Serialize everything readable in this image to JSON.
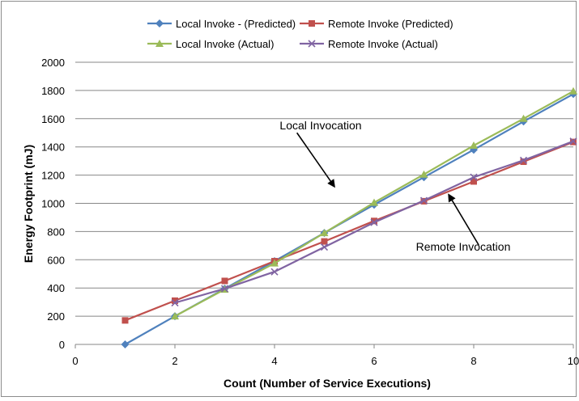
{
  "chart_data": {
    "type": "line",
    "title": "",
    "xlabel": "Count (Number of Service Executions)",
    "ylabel": "Energy Footprint  (mJ)",
    "xlim": [
      0,
      10
    ],
    "ylim": [
      0,
      2000
    ],
    "xticks": [
      0,
      2,
      4,
      6,
      8,
      10
    ],
    "yticks": [
      0,
      200,
      400,
      600,
      800,
      1000,
      1200,
      1400,
      1600,
      1800,
      2000
    ],
    "grid": "horizontal",
    "legend_position": "top",
    "series": [
      {
        "name": "Local Invoke - (Predicted)",
        "color": "#4f81bd",
        "marker": "diamond",
        "x": [
          1,
          2,
          3,
          4,
          5,
          6,
          7,
          8,
          9,
          10
        ],
        "y": [
          0,
          200,
          395,
          590,
          790,
          990,
          1185,
          1380,
          1580,
          1775
        ]
      },
      {
        "name": "Remote Invoke (Predicted)",
        "color": "#c0504d",
        "marker": "square",
        "x": [
          1,
          2,
          3,
          4,
          5,
          6,
          7,
          8,
          9,
          10
        ],
        "y": [
          170,
          310,
          450,
          590,
          730,
          875,
          1015,
          1155,
          1295,
          1435
        ]
      },
      {
        "name": "Local Invoke (Actual)",
        "color": "#9bbb59",
        "marker": "triangle",
        "x": [
          2,
          3,
          4,
          5,
          6,
          7,
          8,
          9,
          10
        ],
        "y": [
          200,
          390,
          575,
          790,
          1005,
          1205,
          1410,
          1600,
          1795
        ]
      },
      {
        "name": "Remote Invoke (Actual)",
        "color": "#8064a2",
        "marker": "x",
        "x": [
          2,
          3,
          4,
          5,
          6,
          7,
          8,
          9,
          10
        ],
        "y": [
          295,
          395,
          515,
          690,
          865,
          1020,
          1185,
          1305,
          1440
        ]
      }
    ],
    "annotations": [
      {
        "text": "Local Invocation",
        "arrow_from": [
          4.45,
          1500
        ],
        "arrow_to": [
          5.2,
          1120
        ]
      },
      {
        "text": "Remote Invocation",
        "arrow_from": [
          8.1,
          705
        ],
        "arrow_to": [
          7.5,
          1060
        ]
      }
    ]
  }
}
